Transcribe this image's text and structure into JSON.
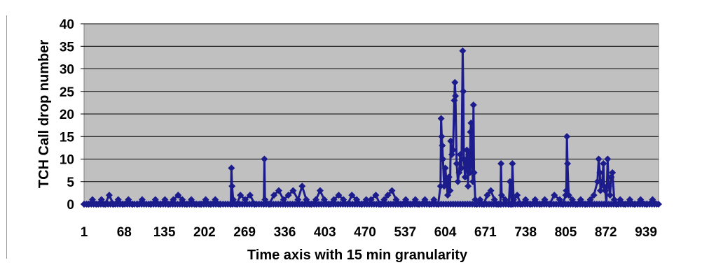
{
  "chart_data": {
    "type": "line",
    "title": "",
    "xlabel": "Time axis with 15 min granularity",
    "ylabel": "TCH Call drop number",
    "ylim": [
      0,
      40
    ],
    "xlim": [
      1,
      960
    ],
    "yticks": [
      0,
      5,
      10,
      15,
      20,
      25,
      30,
      35,
      40
    ],
    "xticks": [
      1,
      68,
      135,
      202,
      269,
      336,
      403,
      470,
      537,
      604,
      671,
      738,
      805,
      872,
      939
    ],
    "grid": "horizontal",
    "legend": "none",
    "colors": {
      "series": "#1c1c8c",
      "plot_background": "#c0c0c0",
      "gridline": "#000000"
    },
    "series": [
      {
        "marker": "diamond",
        "points": [
          [
            1,
            0
          ],
          [
            8,
            0
          ],
          [
            15,
            1
          ],
          [
            22,
            0
          ],
          [
            30,
            1
          ],
          [
            36,
            0
          ],
          [
            43,
            2
          ],
          [
            50,
            0
          ],
          [
            58,
            1
          ],
          [
            66,
            0
          ],
          [
            75,
            1
          ],
          [
            82,
            0
          ],
          [
            90,
            0
          ],
          [
            98,
            1
          ],
          [
            105,
            0
          ],
          [
            112,
            0
          ],
          [
            120,
            1
          ],
          [
            128,
            0
          ],
          [
            136,
            1
          ],
          [
            142,
            0
          ],
          [
            150,
            1
          ],
          [
            158,
            2
          ],
          [
            165,
            1
          ],
          [
            172,
            0
          ],
          [
            180,
            1
          ],
          [
            188,
            0
          ],
          [
            196,
            0
          ],
          [
            204,
            1
          ],
          [
            212,
            0
          ],
          [
            220,
            1
          ],
          [
            228,
            0
          ],
          [
            246,
            0
          ],
          [
            247,
            8
          ],
          [
            248,
            4
          ],
          [
            250,
            1
          ],
          [
            256,
            0
          ],
          [
            262,
            2
          ],
          [
            270,
            1
          ],
          [
            278,
            2
          ],
          [
            286,
            0
          ],
          [
            301,
            0
          ],
          [
            302,
            10
          ],
          [
            303,
            1
          ],
          [
            310,
            0
          ],
          [
            318,
            2
          ],
          [
            326,
            3
          ],
          [
            334,
            1
          ],
          [
            342,
            2
          ],
          [
            350,
            3
          ],
          [
            358,
            1
          ],
          [
            365,
            4
          ],
          [
            372,
            1
          ],
          [
            380,
            0
          ],
          [
            388,
            1
          ],
          [
            395,
            3
          ],
          [
            402,
            1
          ],
          [
            410,
            0
          ],
          [
            418,
            1
          ],
          [
            426,
            2
          ],
          [
            434,
            1
          ],
          [
            441,
            0
          ],
          [
            448,
            2
          ],
          [
            456,
            1
          ],
          [
            464,
            0
          ],
          [
            472,
            1
          ],
          [
            480,
            1
          ],
          [
            488,
            2
          ],
          [
            495,
            0
          ],
          [
            502,
            1
          ],
          [
            508,
            2
          ],
          [
            515,
            3
          ],
          [
            522,
            1
          ],
          [
            530,
            0
          ],
          [
            538,
            1
          ],
          [
            546,
            0
          ],
          [
            554,
            1
          ],
          [
            560,
            0
          ],
          [
            570,
            1
          ],
          [
            578,
            0
          ],
          [
            585,
            1
          ],
          [
            592,
            0
          ],
          [
            596,
            4
          ],
          [
            597,
            19
          ],
          [
            598,
            15
          ],
          [
            599,
            13
          ],
          [
            600,
            10
          ],
          [
            602,
            4
          ],
          [
            604,
            8
          ],
          [
            606,
            5
          ],
          [
            608,
            2
          ],
          [
            610,
            6
          ],
          [
            612,
            3
          ],
          [
            613,
            14
          ],
          [
            615,
            11
          ],
          [
            617,
            12
          ],
          [
            619,
            23
          ],
          [
            620,
            27
          ],
          [
            621,
            24
          ],
          [
            623,
            9
          ],
          [
            625,
            5
          ],
          [
            627,
            7
          ],
          [
            629,
            11
          ],
          [
            631,
            8
          ],
          [
            633,
            34
          ],
          [
            634,
            25
          ],
          [
            635,
            10
          ],
          [
            637,
            6
          ],
          [
            639,
            9
          ],
          [
            640,
            12
          ],
          [
            642,
            4
          ],
          [
            643,
            11
          ],
          [
            645,
            7
          ],
          [
            646,
            16
          ],
          [
            647,
            18
          ],
          [
            648,
            10
          ],
          [
            650,
            5
          ],
          [
            651,
            22
          ],
          [
            652,
            7
          ],
          [
            654,
            1
          ],
          [
            656,
            0
          ],
          [
            662,
            1
          ],
          [
            668,
            0
          ],
          [
            674,
            2
          ],
          [
            680,
            3
          ],
          [
            686,
            1
          ],
          [
            692,
            0
          ],
          [
            696,
            0
          ],
          [
            697,
            9
          ],
          [
            698,
            2
          ],
          [
            704,
            1
          ],
          [
            710,
            0
          ],
          [
            712,
            5
          ],
          [
            715,
            0
          ],
          [
            716,
            9
          ],
          [
            718,
            1
          ],
          [
            724,
            2
          ],
          [
            730,
            0
          ],
          [
            738,
            1
          ],
          [
            746,
            0
          ],
          [
            754,
            1
          ],
          [
            762,
            0
          ],
          [
            770,
            1
          ],
          [
            778,
            0
          ],
          [
            786,
            2
          ],
          [
            795,
            1
          ],
          [
            800,
            0
          ],
          [
            805,
            2
          ],
          [
            806,
            3
          ],
          [
            807,
            15
          ],
          [
            808,
            9
          ],
          [
            810,
            2
          ],
          [
            816,
            1
          ],
          [
            822,
            0
          ],
          [
            830,
            1
          ],
          [
            838,
            0
          ],
          [
            846,
            1
          ],
          [
            852,
            2
          ],
          [
            858,
            5
          ],
          [
            860,
            10
          ],
          [
            862,
            7
          ],
          [
            863,
            3
          ],
          [
            866,
            5
          ],
          [
            868,
            9
          ],
          [
            869,
            4
          ],
          [
            871,
            3
          ],
          [
            873,
            0
          ],
          [
            875,
            10
          ],
          [
            877,
            4
          ],
          [
            879,
            2
          ],
          [
            881,
            6
          ],
          [
            883,
            7
          ],
          [
            886,
            1
          ],
          [
            890,
            0
          ],
          [
            896,
            1
          ],
          [
            904,
            0
          ],
          [
            912,
            1
          ],
          [
            920,
            0
          ],
          [
            930,
            1
          ],
          [
            940,
            0
          ],
          [
            950,
            1
          ],
          [
            960,
            0
          ]
        ]
      }
    ]
  }
}
